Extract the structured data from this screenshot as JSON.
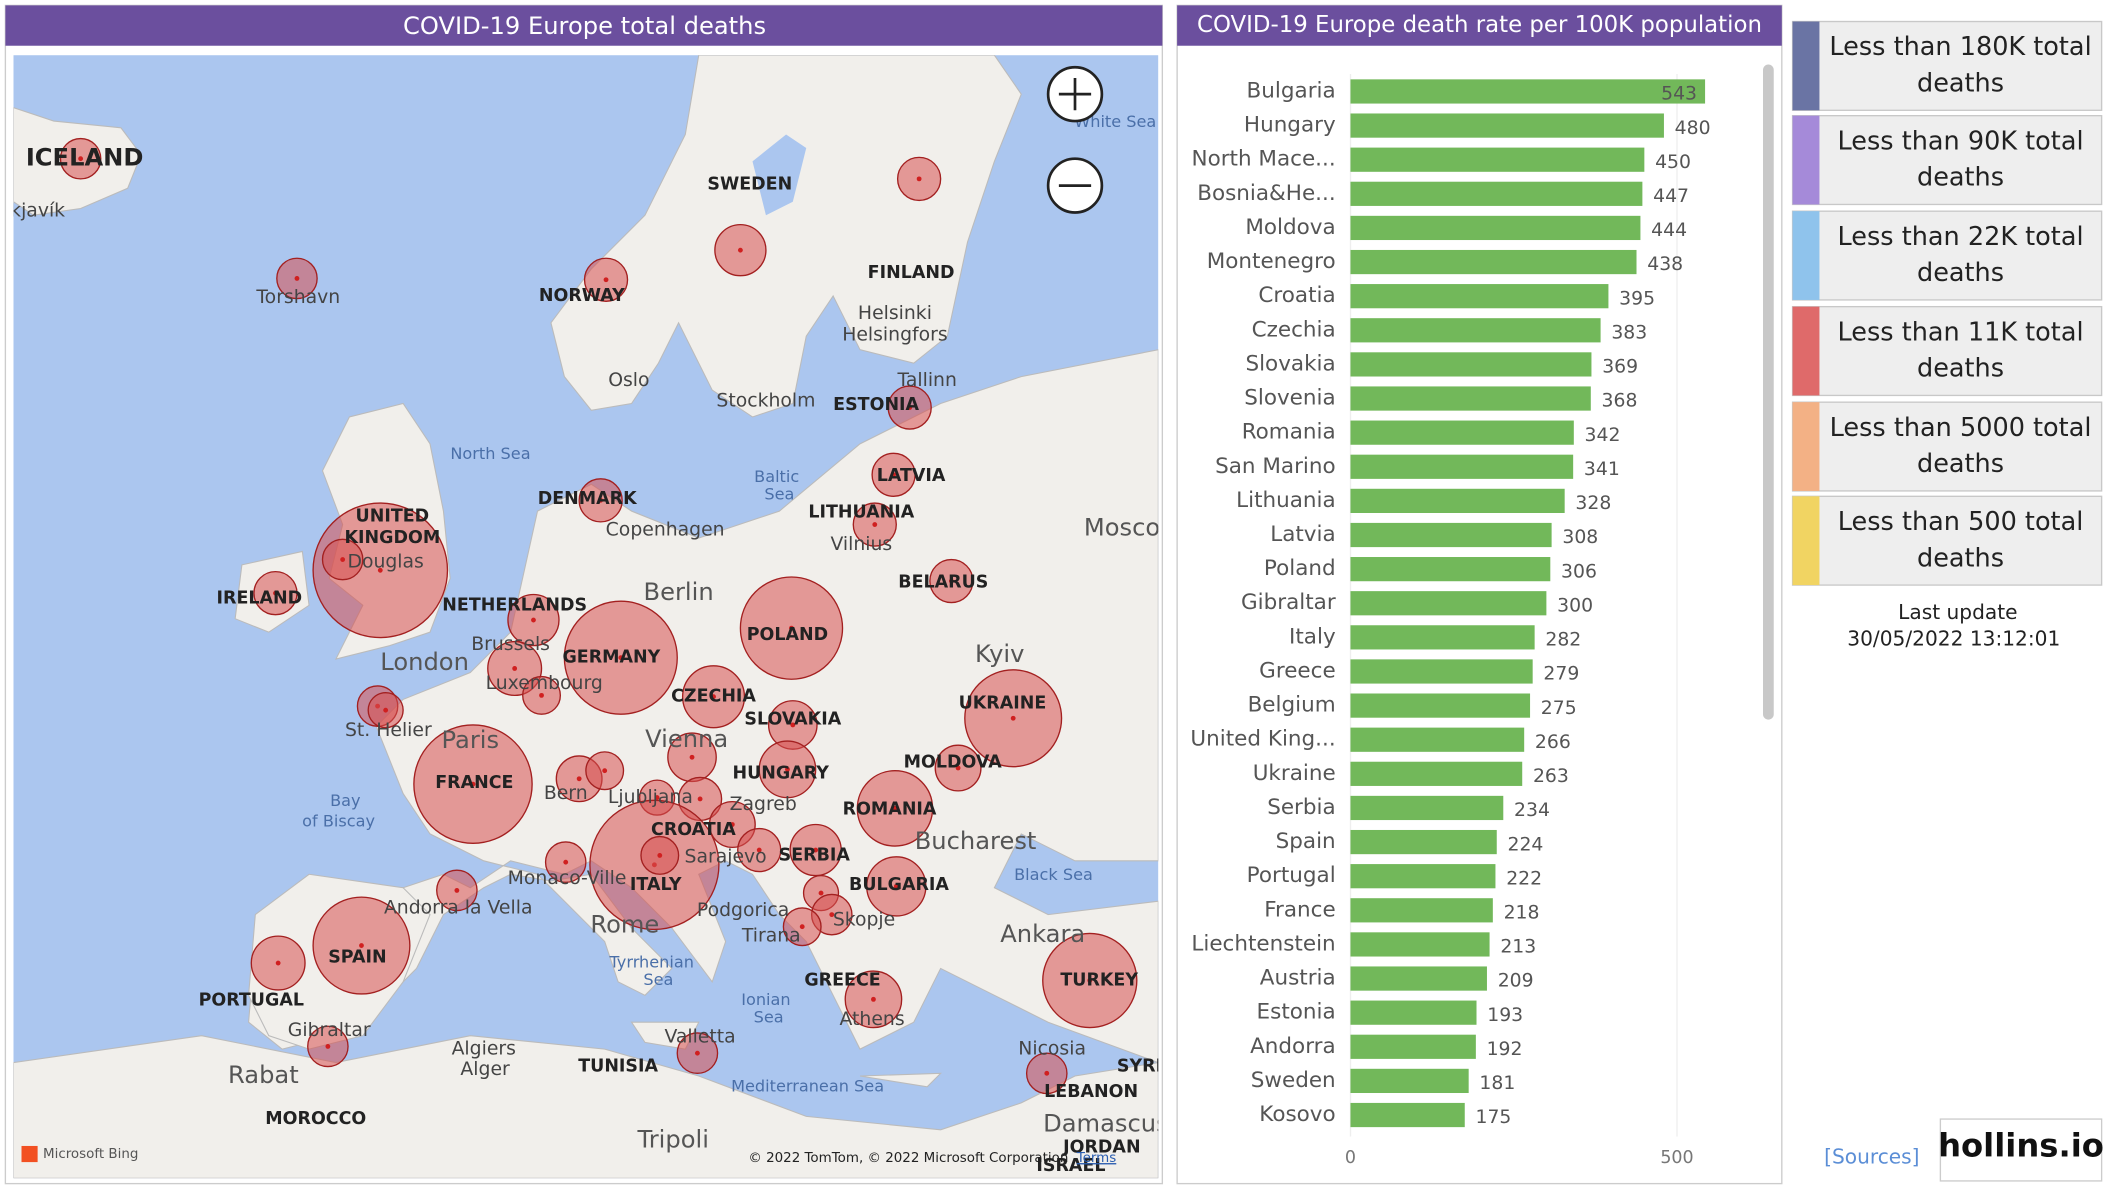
{
  "map": {
    "title": "COVID-19 Europe total deaths",
    "labels": [
      "ICELAND",
      "kjavík",
      "Torshavn",
      "NORWAY",
      "SWEDEN",
      "FINLAND",
      "Helsinki",
      "Helsingfors",
      "Oslo",
      "Stockholm",
      "Tallinn",
      "ESTONIA",
      "North Sea",
      "Baltic",
      "Sea",
      "LATVIA",
      "LITHUANIA",
      "Vilnius",
      "DENMARK",
      "Copenhagen",
      "UNITED",
      "KINGDOM",
      "Douglas",
      "IRELAND",
      "NETHERLANDS",
      "Berlin",
      "BELARUS",
      "POLAND",
      "GERMANY",
      "Brussels",
      "Luxembourg",
      "London",
      "Kyiv",
      "UKRAINE",
      "CZECHIA",
      "SLOVAKIA",
      "Vienna",
      "St. Helier",
      "Paris",
      "FRANCE",
      "HUNGARY",
      "MOLDOVA",
      "Bay",
      "of Biscay",
      "Bern",
      "Ljubljana",
      "Zagreb",
      "CROATIA",
      "ROMANIA",
      "Bucharest",
      "Sarajevo",
      "SERBIA",
      "Monaco-Ville",
      "ITALY",
      "Black Sea",
      "BULGARIA",
      "Andorra la Vella",
      "Podgorica",
      "Skopje",
      "Rome",
      "Tirana",
      "Ankara",
      "TURKEY",
      "SPAIN",
      "PORTUGAL",
      "Tyrrhenian",
      "Sea",
      "Ionian",
      "Sea",
      "GREECE",
      "Athens",
      "Gibraltar",
      "Valletta",
      "Algiers",
      "Alger",
      "TUNISIA",
      "Nicosia",
      "SYRI",
      "LEBANON",
      "Mediterranean Sea",
      "Rabat",
      "MOROCCO",
      "Damascus",
      "Tripoli",
      "JORDAN",
      "ISRAEL",
      "Mosco",
      "White Sea"
    ],
    "bing": "Microsoft Bing",
    "attribution": "© 2022 TomTom, © 2022 Microsoft Corporation",
    "terms": "Terms"
  },
  "chart_data": {
    "type": "bar",
    "orientation": "horizontal",
    "title": "COVID-19 Europe death rate per 100K population",
    "categories": [
      "Bulgaria",
      "Hungary",
      "North Mace...",
      "Bosnia&He...",
      "Moldova",
      "Montenegro",
      "Croatia",
      "Czechia",
      "Slovakia",
      "Slovenia",
      "Romania",
      "San Marino",
      "Lithuania",
      "Latvia",
      "Poland",
      "Gibraltar",
      "Italy",
      "Greece",
      "Belgium",
      "United King...",
      "Ukraine",
      "Serbia",
      "Spain",
      "Portugal",
      "France",
      "Liechtenstein",
      "Austria",
      "Estonia",
      "Andorra",
      "Sweden",
      "Kosovo"
    ],
    "values": [
      543,
      480,
      450,
      447,
      444,
      438,
      395,
      383,
      369,
      368,
      342,
      341,
      328,
      308,
      306,
      300,
      282,
      279,
      275,
      266,
      263,
      234,
      224,
      222,
      218,
      213,
      209,
      193,
      192,
      181,
      175
    ],
    "color": "#72b85a",
    "xlim": [
      0,
      600
    ],
    "xticks": [
      0,
      500
    ]
  },
  "legend": {
    "items": [
      {
        "label": "Less than 180K total deaths",
        "color": "#6a74a4"
      },
      {
        "label": "Less than 90K total deaths",
        "color": "#a58ad9"
      },
      {
        "label": "Less than 22K total deaths",
        "color": "#8fc3ec"
      },
      {
        "label": "Less than 11K total deaths",
        "color": "#df6a6a"
      },
      {
        "label": "Less than 5000 total deaths",
        "color": "#f3b185"
      },
      {
        "label": "Less than 500 total deaths",
        "color": "#f1d462"
      }
    ]
  },
  "last_update": {
    "label": "Last update",
    "value": "30/05/2022 13:12:01"
  },
  "sources": "[Sources]",
  "brand": "hollins.io"
}
